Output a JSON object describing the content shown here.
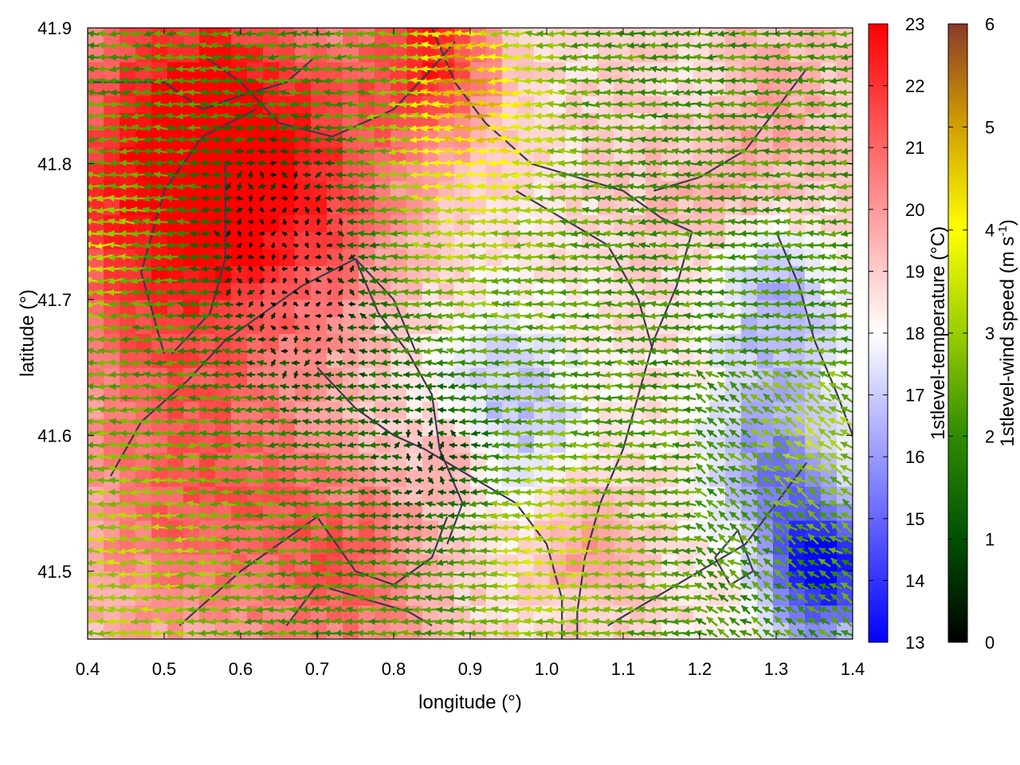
{
  "chart_data": {
    "type": "heatmap",
    "xlabel": "longitude (°)",
    "ylabel": "latitude (°)",
    "xlim": [
      0.4,
      1.4
    ],
    "ylim": [
      41.45,
      41.9
    ],
    "xticks": [
      "0.4",
      "0.5",
      "0.6",
      "0.7",
      "0.8",
      "0.9",
      "1.0",
      "1.1",
      "1.2",
      "1.3",
      "1.4"
    ],
    "yticks": [
      "41.5",
      "41.6",
      "41.7",
      "41.8",
      "41.9"
    ],
    "xtick_values": [
      0.4,
      0.5,
      0.6,
      0.7,
      0.8,
      0.9,
      1.0,
      1.1,
      1.2,
      1.3,
      1.4
    ],
    "ytick_values": [
      41.5,
      41.6,
      41.7,
      41.8,
      41.9
    ],
    "heat_field": {
      "label": "1stlevel-temperature (°C)",
      "range": [
        13,
        23
      ],
      "ticks": [
        "13",
        "14",
        "15",
        "16",
        "17",
        "18",
        "19",
        "20",
        "21",
        "22",
        "23"
      ],
      "tick_values": [
        13,
        14,
        15,
        16,
        17,
        18,
        19,
        20,
        21,
        22,
        23
      ],
      "colormap": [
        "#0000ff",
        "#ffffff",
        "#ff0000"
      ]
    },
    "vector_field": {
      "label_main": "1stlevel-wind speed (m s",
      "label_sup": "-1",
      "label_end": ")",
      "range": [
        0,
        6
      ],
      "ticks": [
        "0",
        "1",
        "2",
        "3",
        "4",
        "5",
        "6"
      ],
      "tick_values": [
        0,
        1,
        2,
        3,
        4,
        5,
        6
      ],
      "colormap": [
        "#000000",
        "#005000",
        "#2e8b00",
        "#9acd00",
        "#ffff00",
        "#d2a000",
        "#8b3a2a"
      ]
    },
    "temperature_centers": [
      {
        "lon": 0.55,
        "lat": 41.85,
        "amp": 3.2,
        "s": 0.12
      },
      {
        "lon": 0.85,
        "lat": 41.88,
        "amp": 3.5,
        "s": 0.06
      },
      {
        "lon": 0.5,
        "lat": 41.75,
        "amp": 2.8,
        "s": 0.12
      },
      {
        "lon": 0.7,
        "lat": 41.78,
        "amp": 2.0,
        "s": 0.1
      },
      {
        "lon": 0.55,
        "lat": 41.55,
        "amp": 2.5,
        "s": 0.12
      },
      {
        "lon": 0.75,
        "lat": 41.5,
        "amp": 2.2,
        "s": 0.08
      },
      {
        "lon": 1.05,
        "lat": 41.52,
        "amp": 1.5,
        "s": 0.05
      },
      {
        "lon": 1.25,
        "lat": 41.82,
        "amp": 1.5,
        "s": 0.1
      },
      {
        "lon": 0.88,
        "lat": 41.59,
        "amp": 1.8,
        "s": 0.03
      },
      {
        "lon": 1.36,
        "lat": 41.5,
        "amp": -5.5,
        "s": 0.05
      },
      {
        "lon": 1.3,
        "lat": 41.58,
        "amp": -3.0,
        "s": 0.06
      },
      {
        "lon": 0.95,
        "lat": 41.62,
        "amp": -2.0,
        "s": 0.07
      },
      {
        "lon": 1.3,
        "lat": 41.7,
        "amp": -2.5,
        "s": 0.06
      },
      {
        "lon": 1.2,
        "lat": 41.85,
        "amp": -1.0,
        "s": 0.05
      }
    ],
    "wind_centers": [
      {
        "lon": 0.92,
        "lat": 41.84,
        "amp": 2.0,
        "s": 0.06
      },
      {
        "lon": 0.88,
        "lat": 41.88,
        "amp": 1.8,
        "s": 0.03
      },
      {
        "lon": 0.85,
        "lat": 41.76,
        "amp": 1.0,
        "s": 0.1
      },
      {
        "lon": 0.4,
        "lat": 41.74,
        "amp": 1.2,
        "s": 0.05
      },
      {
        "lon": 0.45,
        "lat": 41.5,
        "amp": 1.0,
        "s": 0.1
      },
      {
        "lon": 1.0,
        "lat": 41.52,
        "amp": 1.2,
        "s": 0.08
      },
      {
        "lon": 1.35,
        "lat": 41.6,
        "amp": 1.0,
        "s": 0.05
      },
      {
        "lon": 0.7,
        "lat": 41.7,
        "amp": -1.8,
        "s": 0.08
      },
      {
        "lon": 0.65,
        "lat": 41.76,
        "amp": -1.5,
        "s": 0.07
      },
      {
        "lon": 0.85,
        "lat": 41.58,
        "amp": -1.5,
        "s": 0.06
      }
    ],
    "contours": [
      [
        [
          0.4,
          41.86
        ],
        [
          0.5,
          41.86
        ],
        [
          0.55,
          41.84
        ],
        [
          0.6,
          41.85
        ],
        [
          0.66,
          41.86
        ],
        [
          0.7,
          41.88
        ]
      ],
      [
        [
          0.55,
          41.88
        ],
        [
          0.6,
          41.86
        ],
        [
          0.65,
          41.83
        ],
        [
          0.72,
          41.82
        ],
        [
          0.8,
          41.84
        ],
        [
          0.85,
          41.87
        ],
        [
          0.88,
          41.89
        ]
      ],
      [
        [
          0.5,
          41.66
        ],
        [
          0.47,
          41.72
        ],
        [
          0.5,
          41.78
        ],
        [
          0.55,
          41.82
        ],
        [
          0.62,
          41.84
        ]
      ],
      [
        [
          0.51,
          41.66
        ],
        [
          0.56,
          41.69
        ],
        [
          0.58,
          41.73
        ],
        [
          0.58,
          41.8
        ]
      ],
      [
        [
          0.43,
          41.57
        ],
        [
          0.47,
          41.61
        ],
        [
          0.53,
          41.64
        ],
        [
          0.58,
          41.67
        ],
        [
          0.63,
          41.69
        ],
        [
          0.68,
          41.71
        ],
        [
          0.75,
          41.73
        ],
        [
          0.8,
          41.7
        ],
        [
          0.83,
          41.66
        ]
      ],
      [
        [
          0.75,
          41.73
        ],
        [
          0.78,
          41.69
        ],
        [
          0.82,
          41.66
        ],
        [
          0.85,
          41.63
        ],
        [
          0.86,
          41.59
        ],
        [
          0.89,
          41.55
        ],
        [
          0.87,
          41.52
        ]
      ],
      [
        [
          0.7,
          41.54
        ],
        [
          0.65,
          41.52
        ],
        [
          0.6,
          41.5
        ],
        [
          0.56,
          41.48
        ],
        [
          0.52,
          41.46
        ]
      ],
      [
        [
          0.7,
          41.54
        ],
        [
          0.75,
          41.5
        ],
        [
          0.8,
          41.49
        ],
        [
          0.85,
          41.51
        ],
        [
          0.87,
          41.54
        ]
      ],
      [
        [
          0.66,
          41.46
        ],
        [
          0.7,
          41.49
        ],
        [
          0.76,
          41.48
        ],
        [
          0.82,
          41.47
        ],
        [
          0.85,
          41.46
        ]
      ],
      [
        [
          0.85,
          41.9
        ],
        [
          0.88,
          41.86
        ],
        [
          0.92,
          41.83
        ],
        [
          0.98,
          41.8
        ],
        [
          1.04,
          41.79
        ],
        [
          1.1,
          41.78
        ],
        [
          1.15,
          41.76
        ],
        [
          1.19,
          41.75
        ]
      ],
      [
        [
          1.19,
          41.75
        ],
        [
          1.17,
          41.71
        ],
        [
          1.14,
          41.67
        ],
        [
          1.12,
          41.63
        ],
        [
          1.1,
          41.59
        ],
        [
          1.07,
          41.55
        ],
        [
          1.05,
          41.51
        ],
        [
          1.04,
          41.47
        ],
        [
          1.04,
          41.45
        ]
      ],
      [
        [
          0.7,
          41.65
        ],
        [
          0.75,
          41.62
        ],
        [
          0.8,
          41.6
        ],
        [
          0.84,
          41.59
        ],
        [
          0.9,
          41.57
        ],
        [
          0.96,
          41.55
        ],
        [
          1.0,
          41.52
        ],
        [
          1.02,
          41.48
        ],
        [
          1.02,
          41.45
        ]
      ],
      [
        [
          1.14,
          41.78
        ],
        [
          1.2,
          41.79
        ],
        [
          1.26,
          41.81
        ],
        [
          1.3,
          41.84
        ],
        [
          1.34,
          41.87
        ]
      ],
      [
        [
          1.3,
          41.75
        ],
        [
          1.33,
          41.71
        ],
        [
          1.35,
          41.67
        ],
        [
          1.38,
          41.63
        ],
        [
          1.4,
          41.6
        ]
      ],
      [
        [
          1.08,
          41.46
        ],
        [
          1.14,
          41.48
        ],
        [
          1.2,
          41.5
        ],
        [
          1.26,
          41.52
        ],
        [
          1.3,
          41.55
        ],
        [
          1.34,
          41.58
        ]
      ],
      [
        [
          1.22,
          41.51
        ],
        [
          1.25,
          41.53
        ],
        [
          1.27,
          41.5
        ],
        [
          1.24,
          41.49
        ],
        [
          1.22,
          41.51
        ]
      ],
      [
        [
          0.96,
          41.78
        ],
        [
          1.02,
          41.76
        ],
        [
          1.08,
          41.74
        ],
        [
          1.12,
          41.7
        ],
        [
          1.14,
          41.66
        ]
      ]
    ]
  }
}
